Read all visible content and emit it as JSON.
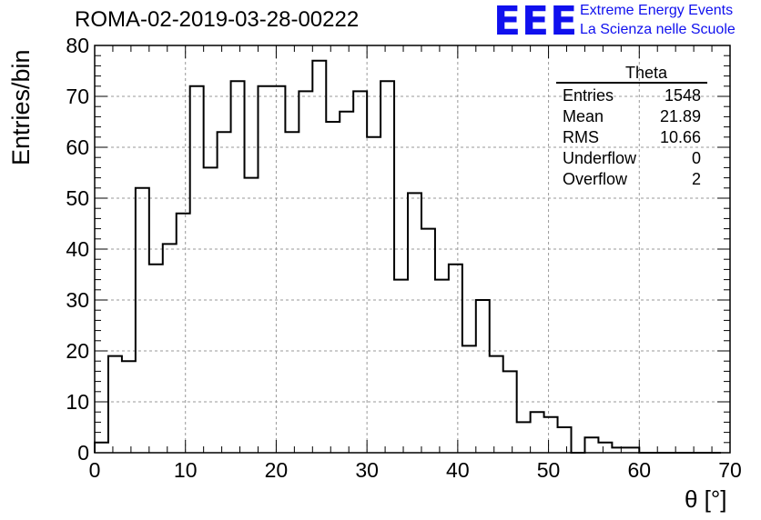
{
  "header": {
    "run_title": "ROMA-02-2019-03-28-00222",
    "logo_text": "EEE",
    "logo_line1": "Extreme Energy Events",
    "logo_line2": "La Scienza nelle Scuole",
    "logo_color": "#1010ee"
  },
  "stats_box": {
    "title": "Theta",
    "rows": [
      {
        "label": "Entries",
        "value": "1548"
      },
      {
        "label": "Mean",
        "value": "21.89"
      },
      {
        "label": "RMS",
        "value": "10.66"
      },
      {
        "label": "Underflow",
        "value": "0"
      },
      {
        "label": "Overflow",
        "value": "2"
      }
    ]
  },
  "chart_data": {
    "type": "bar",
    "style": "step-histogram",
    "title": "ROMA-02-2019-03-28-00222",
    "xlabel": "θ [°]",
    "ylabel": "Entries/bin",
    "xlim": [
      0,
      70
    ],
    "ylim": [
      0,
      80
    ],
    "x_ticks": [
      0,
      10,
      20,
      30,
      40,
      50,
      60,
      70
    ],
    "y_ticks": [
      0,
      10,
      20,
      30,
      40,
      50,
      60,
      70,
      80
    ],
    "grid": true,
    "bin_width": 1.5,
    "bin_edges_start": 0,
    "values": [
      2,
      19,
      18,
      52,
      37,
      41,
      47,
      72,
      56,
      63,
      73,
      54,
      72,
      72,
      63,
      71,
      77,
      65,
      67,
      71,
      62,
      73,
      34,
      51,
      44,
      34,
      37,
      21,
      30,
      19,
      16,
      6,
      8,
      7,
      5,
      0,
      3,
      2,
      1,
      1,
      0,
      0,
      0,
      0,
      0,
      0
    ]
  }
}
